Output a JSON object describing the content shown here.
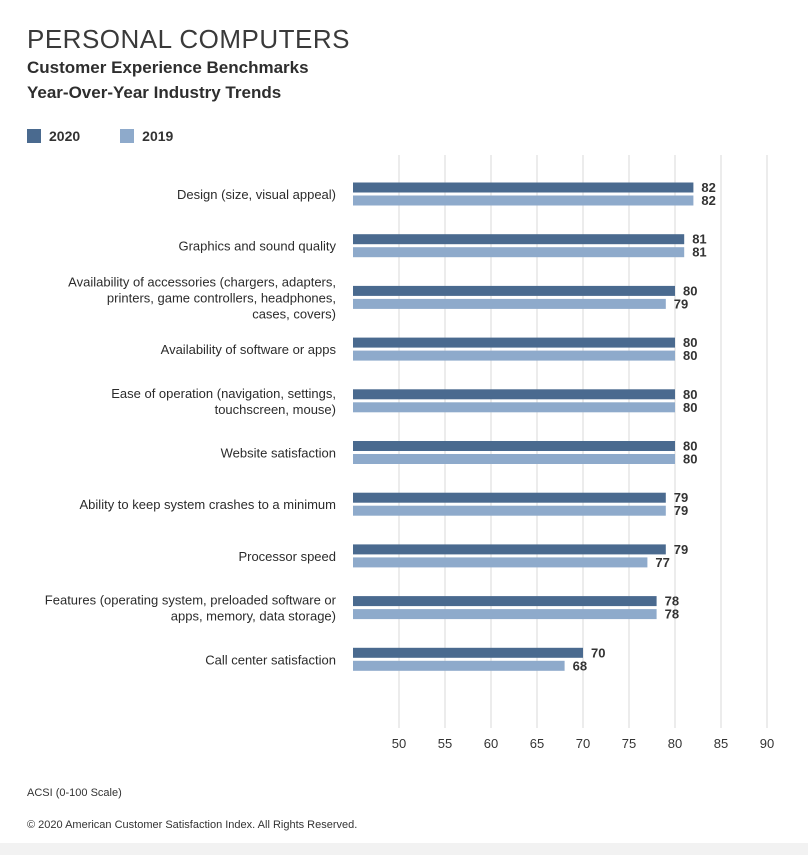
{
  "title": "PERSONAL COMPUTERS",
  "subtitle_line1": "Customer Experience Benchmarks",
  "subtitle_line2": "Year-Over-Year Industry Trends",
  "footnote": "ACSI (0-100 Scale)",
  "copyright": "© 2020 American Customer Satisfaction Index. All Rights Reserved.",
  "colors": {
    "series_2020": "#4a6a8f",
    "series_2019": "#8eaacb",
    "grid": "#d9d9d9",
    "text": "#2b2b2b"
  },
  "chart_data": {
    "type": "bar",
    "orientation": "horizontal",
    "title": "PERSONAL COMPUTERS",
    "subtitle": [
      "Customer Experience Benchmarks",
      "Year-Over-Year Industry Trends"
    ],
    "xlabel": "",
    "ylabel": "",
    "xlim": [
      45,
      90
    ],
    "ticks": [
      50,
      55,
      60,
      65,
      70,
      75,
      80,
      85,
      90
    ],
    "grid": true,
    "legend": "top-left",
    "categories": [
      [
        "Design (size, visual appeal)"
      ],
      [
        "Graphics and sound quality"
      ],
      [
        "Availability of accessories (chargers, adapters,",
        "printers, game controllers, headphones,",
        "cases, covers)"
      ],
      [
        "Availability of software or apps"
      ],
      [
        "Ease of operation (navigation, settings,",
        "touchscreen, mouse)"
      ],
      [
        "Website satisfaction"
      ],
      [
        "Ability to keep system crashes to a minimum"
      ],
      [
        "Processor speed"
      ],
      [
        "Features (operating system, preloaded software or",
        "apps, memory, data storage)"
      ],
      [
        "Call center satisfaction"
      ]
    ],
    "series": [
      {
        "name": "2020",
        "values": [
          82,
          81,
          80,
          80,
          80,
          80,
          79,
          79,
          78,
          70
        ]
      },
      {
        "name": "2019",
        "values": [
          82,
          81,
          79,
          80,
          80,
          80,
          79,
          77,
          78,
          68
        ]
      }
    ]
  }
}
